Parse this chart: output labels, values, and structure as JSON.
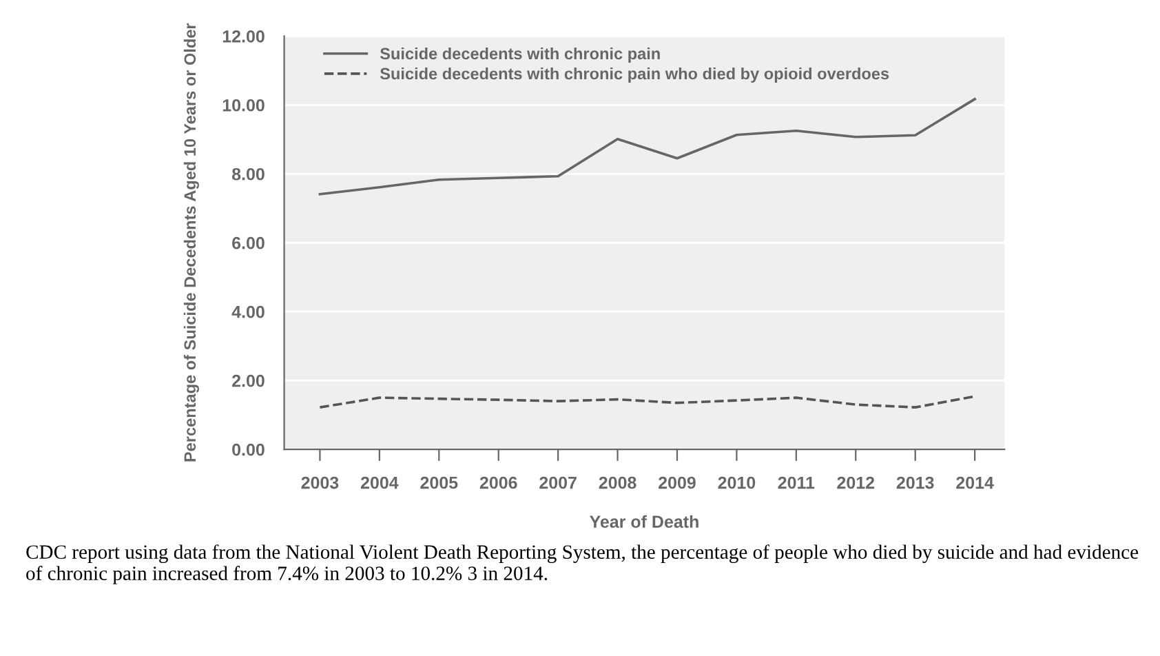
{
  "chart_data": {
    "type": "line",
    "xlabel": "Year of Death",
    "ylabel": "Percentage of Suicide Decedents Aged 10 Years or Older",
    "categories": [
      "2003",
      "2004",
      "2005",
      "2006",
      "2007",
      "2008",
      "2009",
      "2010",
      "2011",
      "2012",
      "2013",
      "2014"
    ],
    "series": [
      {
        "name": "Suicide decedents with chronic pain",
        "color": "#666666",
        "line_style": "solid",
        "values": [
          7.41,
          7.61,
          7.83,
          7.88,
          7.93,
          9.01,
          8.45,
          9.13,
          9.25,
          9.07,
          9.12,
          10.17
        ]
      },
      {
        "name": "Suicide decedents with chronic pain who died by opioid overdoes",
        "color": "#555555",
        "line_style": "dashed",
        "values": [
          1.22,
          1.5,
          1.47,
          1.44,
          1.4,
          1.45,
          1.35,
          1.42,
          1.5,
          1.3,
          1.22,
          1.54
        ]
      }
    ],
    "ylim": [
      0,
      12
    ],
    "yticks": [
      {
        "value": 0,
        "label": "0.00"
      },
      {
        "value": 2,
        "label": "2.00"
      },
      {
        "value": 4,
        "label": "4.00"
      },
      {
        "value": 6,
        "label": "6.00"
      },
      {
        "value": 8,
        "label": "8.00"
      },
      {
        "value": 10,
        "label": "10.00"
      },
      {
        "value": 12,
        "label": "12.00"
      }
    ],
    "grid": "y",
    "legend": "top left",
    "marker": "none",
    "annotations": [
      "CDC report using data from the National Violent Death Reporting System, the percentage of people who died by suicide and had evidence of chronic pain increased from 7.4% in 2003 to 10.2% 3 in 2014."
    ]
  }
}
